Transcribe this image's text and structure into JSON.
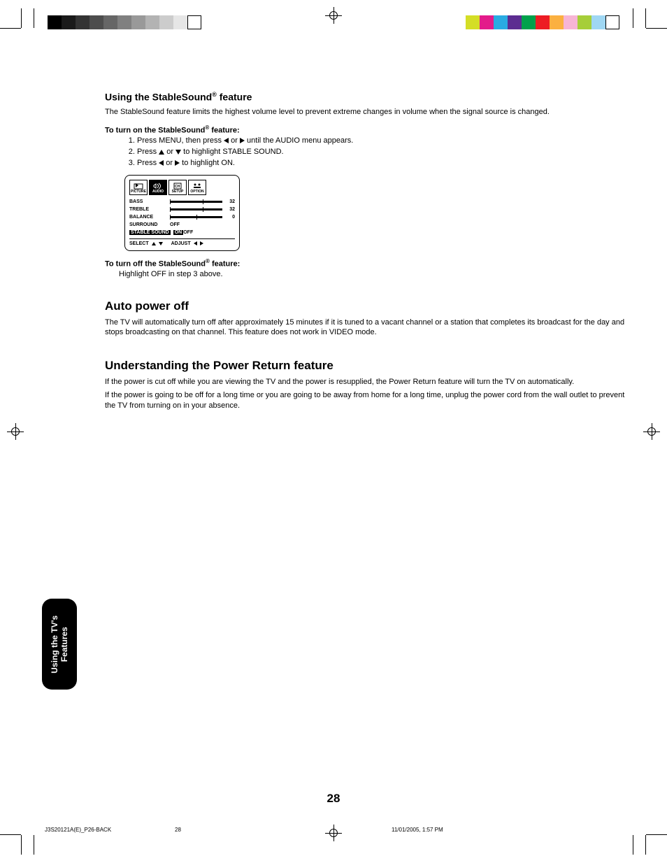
{
  "print_marks": {
    "grayscale_swatches": [
      "#000000",
      "#1a1a1a",
      "#333333",
      "#4d4d4d",
      "#666666",
      "#808080",
      "#999999",
      "#b3b3b3",
      "#cccccc",
      "#e6e6e6",
      "#ffffff"
    ],
    "color_swatches": [
      "#d4de26",
      "#e31b8a",
      "#2aabe2",
      "#5c2d91",
      "#00a14b",
      "#ed1c24",
      "#fbb040",
      "#f7b5d5",
      "#a6ce39",
      "#9fd7f3",
      "#ffffff"
    ]
  },
  "section1": {
    "heading_pre": "Using the StableSound",
    "heading_reg": "®",
    "heading_post": " feature",
    "intro": "The StableSound feature limits the highest volume level to prevent extreme changes in volume when the signal source is changed.",
    "turn_on_label_pre": "To turn on the StableSound",
    "turn_on_label_reg": "®",
    "turn_on_label_post": " feature:",
    "step1_a": "Press MENU, then press ",
    "step1_b": " or ",
    "step1_c": " until the AUDIO menu appears.",
    "step2_a": "Press ",
    "step2_b": " or ",
    "step2_c": " to highlight STABLE SOUND.",
    "step3_a": "Press ",
    "step3_b": " or ",
    "step3_c": " to highlight ON.",
    "turn_off_label_pre": "To turn off the StableSound",
    "turn_off_label_reg": "®",
    "turn_off_label_post": " feature:",
    "turn_off_text": "Highlight OFF in step 3 above."
  },
  "osd": {
    "tabs": [
      "PICTURE",
      "AUDIO",
      "SETUP",
      "OPTION"
    ],
    "selected_tab_index": 1,
    "rows": [
      {
        "label": "BASS",
        "type": "slider",
        "value": "32",
        "pos": 0.62
      },
      {
        "label": "TREBLE",
        "type": "slider",
        "value": "32",
        "pos": 0.62
      },
      {
        "label": "BALANCE",
        "type": "slider",
        "value": "0",
        "pos": 0.5
      },
      {
        "label": "SURROUND",
        "type": "opts",
        "opts": [
          "OFF"
        ],
        "sel": -1
      },
      {
        "label": "STABLE SOUND",
        "type": "opts",
        "opts": [
          "ON",
          "OFF"
        ],
        "sel": 0,
        "highlight": true
      }
    ],
    "footer_select": "SELECT",
    "footer_adjust": "ADJUST"
  },
  "section2": {
    "heading": "Auto power off",
    "body": "The TV will automatically turn off after approximately 15 minutes if it is tuned to a vacant channel or a station that completes its broadcast for the day and stops broadcasting on that channel. This feature does not work in VIDEO mode."
  },
  "section3": {
    "heading": "Understanding the Power Return feature",
    "p1": "If the power is cut off while you are viewing the TV and the power is resupplied, the Power Return feature will turn the TV on automatically.",
    "p2": "If the power is going to be off for a long time or you are going to be away from home for a long time, unplug the power cord from the wall outlet to prevent the TV from turning on in your absence."
  },
  "side_tab": {
    "line1": "Using the TV's",
    "line2": "Features"
  },
  "page_number": "28",
  "footer": {
    "left": "J3S20121A(E)_P26-BACK",
    "mid": "28",
    "right": "11/01/2005, 1:57 PM"
  }
}
